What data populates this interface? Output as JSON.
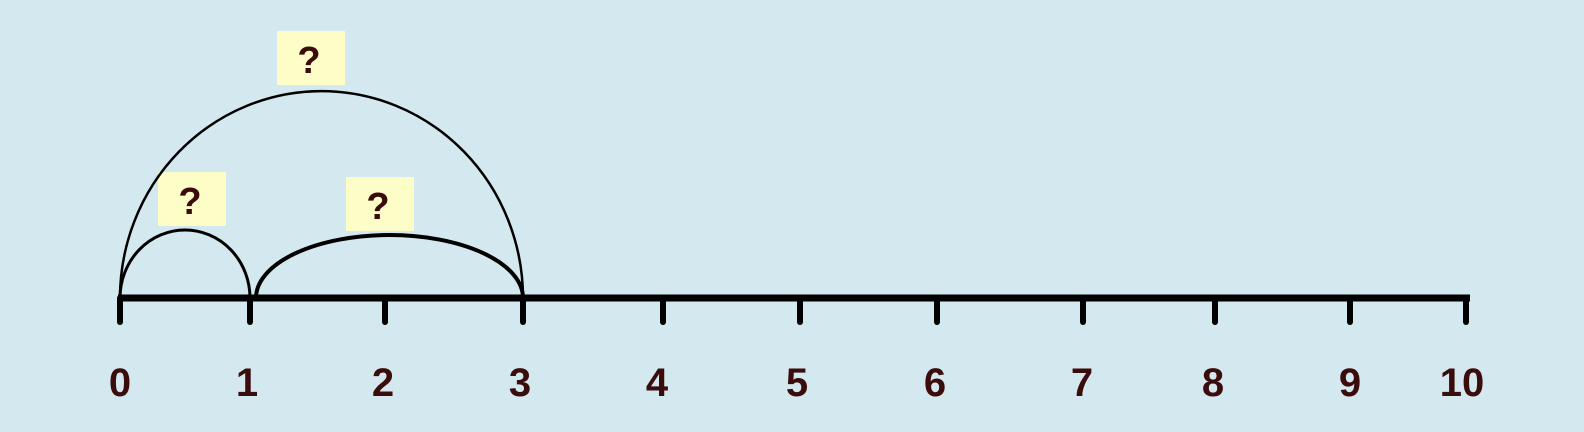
{
  "number_line": {
    "ticks": [
      "0",
      "1",
      "2",
      "3",
      "4",
      "5",
      "6",
      "7",
      "8",
      "9",
      "10"
    ],
    "line_color": "#000000",
    "label_color": "#3a0c0c"
  },
  "jumps": [
    {
      "from": 0,
      "to": 1,
      "label": "?"
    },
    {
      "from": 1,
      "to": 3,
      "label": "?"
    },
    {
      "from": 0,
      "to": 3,
      "label": "?"
    }
  ],
  "colors": {
    "background": "#d4e8ef",
    "label_box": "#fdfdc8"
  }
}
